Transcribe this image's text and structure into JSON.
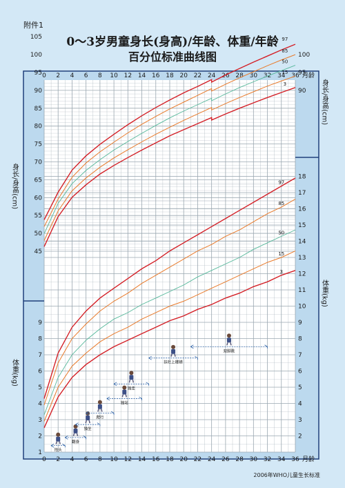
{
  "header": {
    "attachment": "附件1",
    "title_line1": "0～3岁男童身长(身高)/年龄、体重/年龄",
    "title_line2": "百分位标准曲线图"
  },
  "footer": {
    "source": "2006年WHO儿童生长标准"
  },
  "colors": {
    "background": "#d3e8f6",
    "plot_bg": "#ffffff",
    "grid": "#9aa7b0",
    "p97": "#d42027",
    "p85": "#e97a2a",
    "p50": "#55b89a",
    "p15": "#e97a2a",
    "p3": "#d42027",
    "frame": "#1f3f7a"
  },
  "chart_data": [
    {
      "type": "line",
      "name": "height-for-age",
      "xlabel": "月龄",
      "ylabel": "身长/身高(cm)",
      "xlim": [
        0,
        36
      ],
      "ylim": [
        45,
        105
      ],
      "x_ticks": [
        0,
        2,
        4,
        6,
        8,
        10,
        12,
        14,
        16,
        18,
        20,
        22,
        24,
        26,
        28,
        30,
        32,
        34,
        36
      ],
      "y_ticks_left": [
        45,
        50,
        55,
        60,
        65,
        70,
        75,
        80,
        85,
        90,
        95,
        100,
        105
      ],
      "y_ticks_right": [
        90,
        95,
        100
      ],
      "grid": true,
      "x": [
        0,
        2,
        4,
        6,
        8,
        10,
        12,
        14,
        16,
        18,
        20,
        22,
        24,
        24,
        26,
        28,
        30,
        32,
        34,
        36
      ],
      "series": [
        {
          "name": "97",
          "values": [
            53.8,
            61.5,
            67.7,
            71.7,
            74.9,
            77.7,
            80.4,
            82.9,
            85.2,
            87.3,
            89.3,
            91.1,
            93.0,
            92.3,
            94.3,
            96.1,
            97.9,
            99.6,
            101.3,
            102.9
          ]
        },
        {
          "name": "85",
          "values": [
            51.9,
            59.6,
            65.7,
            69.7,
            72.8,
            75.5,
            78.1,
            80.5,
            82.7,
            84.8,
            86.7,
            88.6,
            90.5,
            89.8,
            91.7,
            93.5,
            95.2,
            96.9,
            98.5,
            100.0
          ]
        },
        {
          "name": "50",
          "values": [
            49.9,
            58.4,
            63.9,
            67.6,
            70.6,
            73.3,
            75.7,
            78.0,
            80.2,
            82.3,
            84.2,
            86.0,
            87.8,
            87.1,
            89.0,
            90.8,
            92.4,
            94.0,
            95.5,
            97.0
          ]
        },
        {
          "name": "15",
          "values": [
            48.0,
            56.3,
            61.9,
            65.5,
            68.5,
            71.1,
            73.4,
            75.6,
            77.7,
            79.7,
            81.6,
            83.4,
            85.2,
            84.5,
            86.3,
            88.0,
            89.6,
            91.2,
            92.6,
            94.0
          ]
        },
        {
          "name": "3",
          "values": [
            46.3,
            54.7,
            60.1,
            63.6,
            66.6,
            69.0,
            71.2,
            73.3,
            75.3,
            77.3,
            79.0,
            80.7,
            82.4,
            81.7,
            83.4,
            85.0,
            86.5,
            88.0,
            89.4,
            90.8
          ]
        }
      ],
      "series_labels": [
        "97",
        "85",
        "50",
        "15",
        "3"
      ]
    },
    {
      "type": "line",
      "name": "weight-for-age",
      "xlabel": "月龄",
      "ylabel": "体重(kg)",
      "xlim": [
        0,
        36
      ],
      "ylim": [
        1,
        18
      ],
      "x_ticks": [
        0,
        2,
        4,
        6,
        8,
        10,
        12,
        14,
        16,
        18,
        20,
        22,
        24,
        26,
        28,
        30,
        32,
        34,
        36
      ],
      "y_ticks_left": [
        1,
        2,
        3,
        4,
        5,
        6,
        7,
        8,
        9
      ],
      "y_ticks_right": [
        2,
        3,
        4,
        5,
        6,
        7,
        8,
        9,
        10,
        11,
        12,
        13,
        14,
        15,
        16,
        17,
        18
      ],
      "grid": true,
      "x": [
        0,
        2,
        4,
        6,
        8,
        10,
        12,
        14,
        16,
        18,
        20,
        22,
        24,
        26,
        28,
        30,
        32,
        34,
        36
      ],
      "series": [
        {
          "name": "97",
          "values": [
            4.3,
            7.1,
            8.7,
            9.7,
            10.5,
            11.1,
            11.7,
            12.3,
            12.8,
            13.4,
            13.9,
            14.4,
            14.9,
            15.4,
            15.9,
            16.4,
            16.9,
            17.4,
            17.9
          ]
        },
        {
          "name": "85",
          "values": [
            3.9,
            6.5,
            8.0,
            8.9,
            9.7,
            10.3,
            10.8,
            11.4,
            11.9,
            12.4,
            12.9,
            13.4,
            13.8,
            14.3,
            14.7,
            15.2,
            15.7,
            16.1,
            16.6
          ]
        },
        {
          "name": "50",
          "values": [
            3.3,
            5.6,
            7.0,
            7.9,
            8.6,
            9.2,
            9.6,
            10.1,
            10.5,
            10.9,
            11.3,
            11.8,
            12.2,
            12.6,
            13.0,
            13.5,
            13.9,
            14.3,
            14.7
          ]
        },
        {
          "name": "15",
          "values": [
            2.9,
            5.0,
            6.3,
            7.1,
            7.8,
            8.3,
            8.7,
            9.2,
            9.6,
            10.0,
            10.3,
            10.7,
            11.1,
            11.5,
            11.9,
            12.3,
            12.7,
            13.0,
            13.4
          ]
        },
        {
          "name": "3",
          "values": [
            2.5,
            4.4,
            5.6,
            6.4,
            7.0,
            7.5,
            7.9,
            8.3,
            8.7,
            9.1,
            9.4,
            9.8,
            10.1,
            10.5,
            10.8,
            11.2,
            11.5,
            11.9,
            12.2
          ]
        }
      ],
      "series_labels": [
        "97",
        "85",
        "50",
        "15",
        "3"
      ]
    }
  ],
  "milestones": [
    {
      "label": "抬头",
      "from": 1,
      "to": 3,
      "weight": 1.4,
      "icon": "baby-lifting-head-icon"
    },
    {
      "label": "翻身",
      "from": 3,
      "to": 6,
      "weight": 1.9,
      "icon": "baby-rolling-icon"
    },
    {
      "label": "独坐",
      "from": 4.5,
      "to": 8,
      "weight": 2.7,
      "icon": "baby-sitting-icon"
    },
    {
      "label": "爬行",
      "from": 6,
      "to": 10,
      "weight": 3.4,
      "icon": "baby-crawling-icon"
    },
    {
      "label": "独站",
      "from": 9,
      "to": 14,
      "weight": 4.3,
      "icon": "baby-standing-icon"
    },
    {
      "label": "独走",
      "from": 10,
      "to": 15,
      "weight": 5.2,
      "icon": "baby-walking-icon"
    },
    {
      "label": "扶栏上楼梯",
      "from": 15,
      "to": 22,
      "weight": 6.8,
      "icon": "child-climbing-stairs-icon"
    },
    {
      "label": "双脚跳",
      "from": 21,
      "to": 32,
      "weight": 7.5,
      "icon": "child-jumping-icon"
    }
  ]
}
